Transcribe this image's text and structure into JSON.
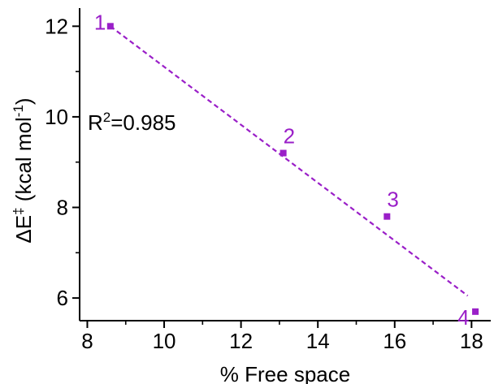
{
  "chart_data": {
    "type": "scatter",
    "xlabel": "% Free space",
    "ylabel": {
      "prefix": "ΔE",
      "sup": "‡",
      "unit_open": " (kcal mol",
      "unit_sup": "-1",
      "unit_close": ")"
    },
    "xlim": [
      7.8,
      18.5
    ],
    "ylim": [
      5.5,
      12.4
    ],
    "xticks": [
      8,
      10,
      12,
      14,
      16,
      18
    ],
    "yticks": [
      6,
      8,
      10,
      12
    ],
    "color": "#9a1fc8",
    "series": [
      {
        "points": [
          {
            "x": 8.6,
            "y": 12.0,
            "label": "1"
          },
          {
            "x": 13.1,
            "y": 9.2,
            "label": "2"
          },
          {
            "x": 15.8,
            "y": 7.8,
            "label": "3"
          },
          {
            "x": 18.1,
            "y": 5.7,
            "label": "4"
          }
        ]
      }
    ],
    "fit_line": {
      "style": "dashed",
      "x": [
        8.6,
        17.9
      ],
      "y": [
        12.0,
        6.05
      ]
    },
    "annotation": {
      "prefix": "R",
      "sup": "2",
      "value": "=0.985"
    }
  }
}
